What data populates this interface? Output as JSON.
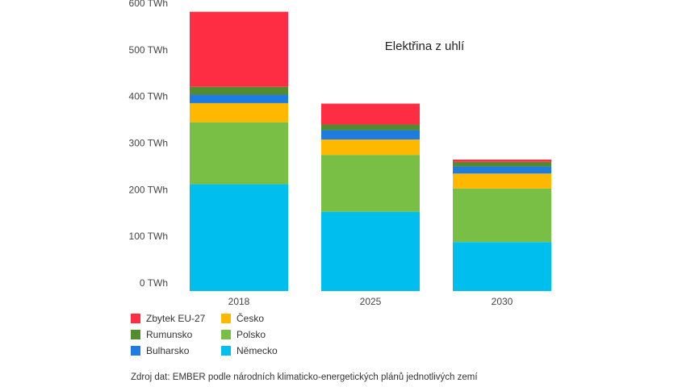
{
  "chart_data": {
    "type": "bar",
    "stacked": true,
    "title": "Elektřina z uhlí",
    "categories": [
      "2018",
      "2025",
      "2030"
    ],
    "ylim": [
      0,
      600
    ],
    "yticks": [
      "0 TWh",
      "100 TWh",
      "200 TWh",
      "300 TWh",
      "400 TWh",
      "500 TWh",
      "600 TWh"
    ],
    "series": [
      {
        "name": "Německo",
        "color": "#00BFEF",
        "values": [
          229,
          170,
          105
        ]
      },
      {
        "name": "Polsko",
        "color": "#7ABF45",
        "values": [
          133,
          122,
          115
        ]
      },
      {
        "name": "Česko",
        "color": "#FFB800",
        "values": [
          41,
          33,
          32
        ]
      },
      {
        "name": "Bulharsko",
        "color": "#1E7CE0",
        "values": [
          18,
          20,
          15
        ]
      },
      {
        "name": "Rumunsko",
        "color": "#538C2E",
        "values": [
          17,
          12,
          10
        ]
      },
      {
        "name": "Zbytek EU-27",
        "color": "#FF2D44",
        "values": [
          161,
          45,
          5
        ]
      }
    ],
    "legend_order": [
      "Zbytek EU-27",
      "Rumunsko",
      "Bulharsko",
      "Česko",
      "Polsko",
      "Německo"
    ],
    "grid": false,
    "legend_position": "bottom-left"
  },
  "source": "Zdroj dat: EMBER podle národních klimaticko-energetických plánů jednotlivých zemí"
}
